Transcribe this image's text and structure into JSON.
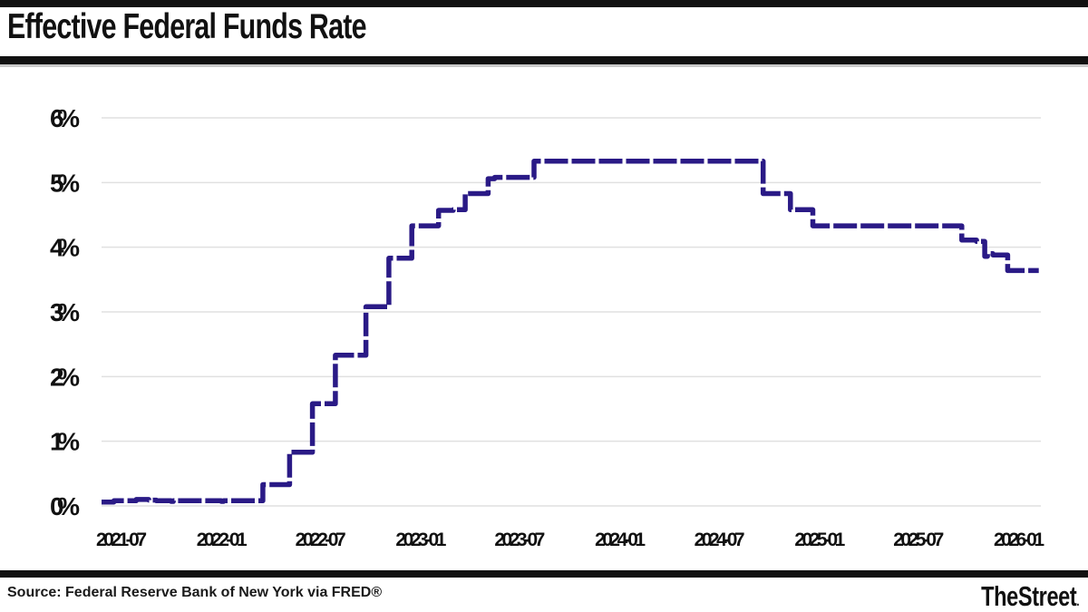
{
  "header": {
    "title": "Effective Federal Funds Rate"
  },
  "footer": {
    "source": "Source: Federal Reserve Bank of New York via FRED®",
    "logo": "TheStreet",
    "logo_dot": "."
  },
  "colors": {
    "line": "#2a1a86",
    "grid": "#e0e0e0",
    "bars": "#111111",
    "text": "#111111"
  },
  "chart_data": {
    "type": "line",
    "subtype": "step-after",
    "line_style": "dashed",
    "title": "Effective Federal Funds Rate",
    "xlabel": "",
    "ylabel": "",
    "unit": "%",
    "ylim": [
      0,
      6
    ],
    "grid": "horizontal",
    "legend": "none",
    "yticks": [
      "0%",
      "1%",
      "2%",
      "3%",
      "4%",
      "5%",
      "6%"
    ],
    "xticks": [
      "2021-07",
      "2022-01",
      "2022-07",
      "2023-01",
      "2023-07",
      "2024-01",
      "2024-07",
      "2025-01",
      "2025-07",
      "2026-01"
    ],
    "x_range": [
      "2021-05-25",
      "2026-02-06"
    ],
    "series": [
      {
        "name": "Effective Federal Funds Rate",
        "points": [
          [
            "2021-05-25",
            0.06
          ],
          [
            "2021-06-17",
            0.08
          ],
          [
            "2021-07-28",
            0.1
          ],
          [
            "2021-08-20",
            0.09
          ],
          [
            "2021-09-03",
            0.08
          ],
          [
            "2021-09-30",
            0.07
          ],
          [
            "2021-10-04",
            0.08
          ],
          [
            "2021-12-31",
            0.07
          ],
          [
            "2022-01-04",
            0.08
          ],
          [
            "2022-03-17",
            0.33
          ],
          [
            "2022-05-05",
            0.83
          ],
          [
            "2022-06-16",
            1.58
          ],
          [
            "2022-07-28",
            2.33
          ],
          [
            "2022-09-22",
            3.08
          ],
          [
            "2022-11-03",
            3.83
          ],
          [
            "2022-12-15",
            4.33
          ],
          [
            "2023-02-02",
            4.57
          ],
          [
            "2023-03-01",
            4.58
          ],
          [
            "2023-03-23",
            4.83
          ],
          [
            "2023-05-04",
            5.06
          ],
          [
            "2023-05-16",
            5.08
          ],
          [
            "2023-07-27",
            5.33
          ],
          [
            "2024-09-19",
            4.83
          ],
          [
            "2024-11-08",
            4.58
          ],
          [
            "2024-12-19",
            4.33
          ],
          [
            "2025-09-18",
            4.11
          ],
          [
            "2025-10-15",
            4.09
          ],
          [
            "2025-10-30",
            3.86
          ],
          [
            "2025-11-04",
            3.9
          ],
          [
            "2025-11-14",
            3.88
          ],
          [
            "2025-12-11",
            3.64
          ],
          [
            "2026-02-06",
            3.64
          ]
        ]
      }
    ]
  }
}
